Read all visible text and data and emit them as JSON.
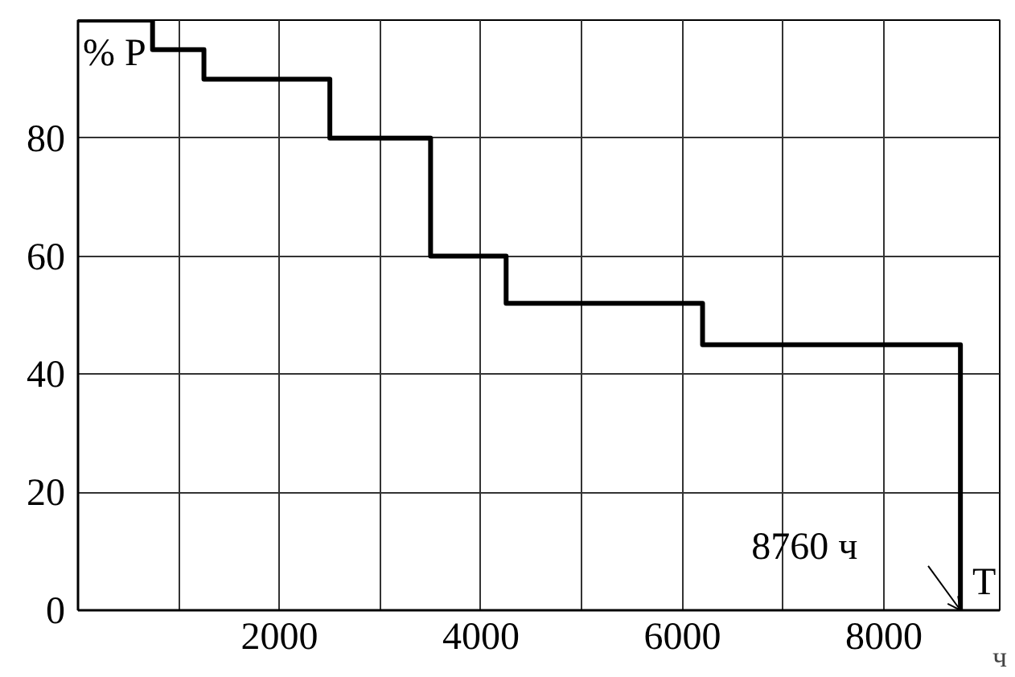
{
  "chart_data": {
    "type": "step",
    "ylabel": "% P",
    "xlabel": "T",
    "x": [
      0,
      740,
      1250,
      2500,
      3500,
      4250,
      6200,
      8760
    ],
    "series": [
      {
        "color": "#000000",
        "values": [
          100,
          95,
          90,
          80,
          60,
          52,
          45,
          0
        ]
      }
    ],
    "xlim": [
      0,
      9150
    ],
    "ylim": [
      0,
      100
    ],
    "xticks": [
      {
        "value": 0,
        "label": null
      },
      {
        "value": 1000,
        "label": null
      },
      2000,
      {
        "value": 3000,
        "label": null
      },
      4000,
      {
        "value": 5000,
        "label": null
      },
      6000,
      {
        "value": 7000,
        "label": null
      },
      8000
    ],
    "yticks": [
      0,
      20,
      40,
      60,
      80,
      {
        "value": 100,
        "label": null
      }
    ],
    "grid": true,
    "line_style": "solid",
    "marker": "none",
    "annotations": [
      {
        "text": "8760 ч",
        "x": 8760,
        "y": 0
      },
      "ч"
    ]
  }
}
